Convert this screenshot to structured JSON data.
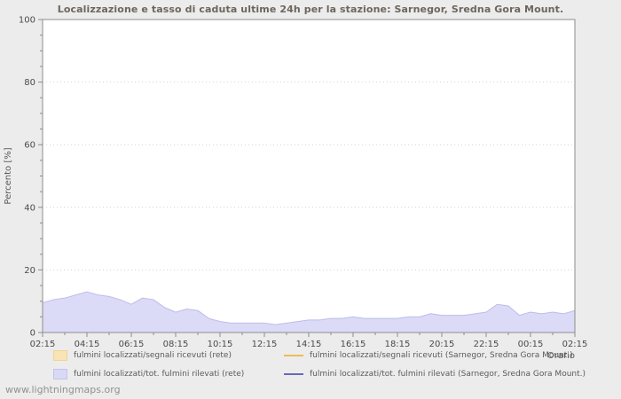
{
  "page": {
    "watermark": "www.lightningmaps.org"
  },
  "chart_data": {
    "type": "area",
    "title": "Localizzazione e tasso di caduta ultime 24h per la stazione: Sarnegor, Sredna Gora Mount.",
    "xlabel": "Orario",
    "ylabel": "Percento  [%]",
    "ylim": [
      0,
      100
    ],
    "y_major_ticks": [
      0,
      20,
      40,
      60,
      80,
      100
    ],
    "y_minor_step": 5,
    "x_start": "02:15",
    "x_step_minutes": 30,
    "x_tick_labels": [
      "02:15",
      "04:15",
      "06:15",
      "08:15",
      "10:15",
      "12:15",
      "14:15",
      "16:15",
      "18:15",
      "20:15",
      "22:15",
      "00:15",
      "02:15"
    ],
    "grid_color": "#d2d2d2",
    "axis_color": "#8c8c8c",
    "tick_text_color": "#4a4a4a",
    "plot_bg": "#ffffff",
    "legend": [
      {
        "label": "fulmini localizzati/segnali ricevuti (rete)",
        "swatch": "box",
        "color": "#f9e4b4",
        "border": "#eed49a"
      },
      {
        "label": "fulmini localizzati/segnali ricevuti (Sarnegor, Sredna Gora Mount.)",
        "swatch": "line",
        "color": "#eebb55"
      },
      {
        "label": "fulmini localizzati/tot. fulmini rilevati (rete)",
        "swatch": "box",
        "color": "#d9d9f7",
        "border": "#c3c3ea"
      },
      {
        "label": "fulmini localizzati/tot. fulmini rilevati (Sarnegor, Sredna Gora Mount.)",
        "swatch": "line",
        "color": "#6868bc"
      }
    ],
    "series": [
      {
        "name": "fulmini localizzati/tot. fulmini rilevati (rete)",
        "style": "area",
        "fill": "#dbdbf7",
        "stroke": "#bcbcec",
        "values": [
          9.5,
          10.5,
          11,
          12,
          13,
          12,
          11.5,
          10.5,
          9,
          11,
          10.5,
          8,
          6.5,
          7.5,
          7,
          4.5,
          3.5,
          3,
          3,
          3,
          3,
          2.5,
          3,
          3.5,
          4,
          4,
          4.5,
          4.5,
          5,
          4.5,
          4.5,
          4.5,
          4.5,
          5,
          5,
          6,
          5.5,
          5.5,
          5.5,
          6,
          6.5,
          9,
          8.5,
          5.5,
          6.5,
          6,
          6.5,
          6,
          7
        ]
      }
    ]
  }
}
